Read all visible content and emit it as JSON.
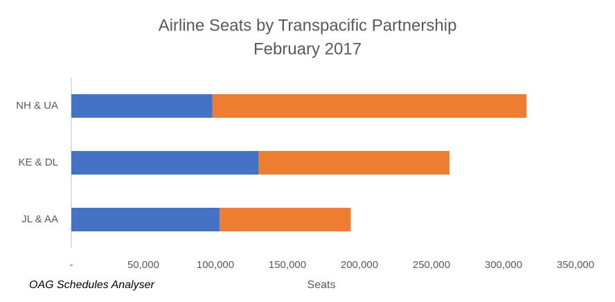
{
  "chart_data": {
    "type": "bar",
    "orientation": "horizontal",
    "stacked": true,
    "title": "Airline Seats by Transpacific Partnership",
    "subtitle": "February 2017",
    "x_label": "Seats",
    "source": "OAG Schedules Analyser",
    "categories": [
      "NH & UA",
      "KE & DL",
      "JL & AA"
    ],
    "series": [
      {
        "color": "#4472c4",
        "values": [
          98000,
          130000,
          103000
        ]
      },
      {
        "color": "#ed7d31",
        "values": [
          218000,
          132500,
          91000
        ]
      }
    ],
    "xlim": [
      0,
      350000
    ],
    "xticks": [
      {
        "value": 0,
        "label": "-"
      },
      {
        "value": 50000,
        "label": "50,000"
      },
      {
        "value": 100000,
        "label": "100,000"
      },
      {
        "value": 150000,
        "label": "150,000"
      },
      {
        "value": 200000,
        "label": "200,000"
      },
      {
        "value": 250000,
        "label": "250,000"
      },
      {
        "value": 300000,
        "label": "300,000"
      },
      {
        "value": 350000,
        "label": "350,000"
      }
    ],
    "grid": false
  }
}
